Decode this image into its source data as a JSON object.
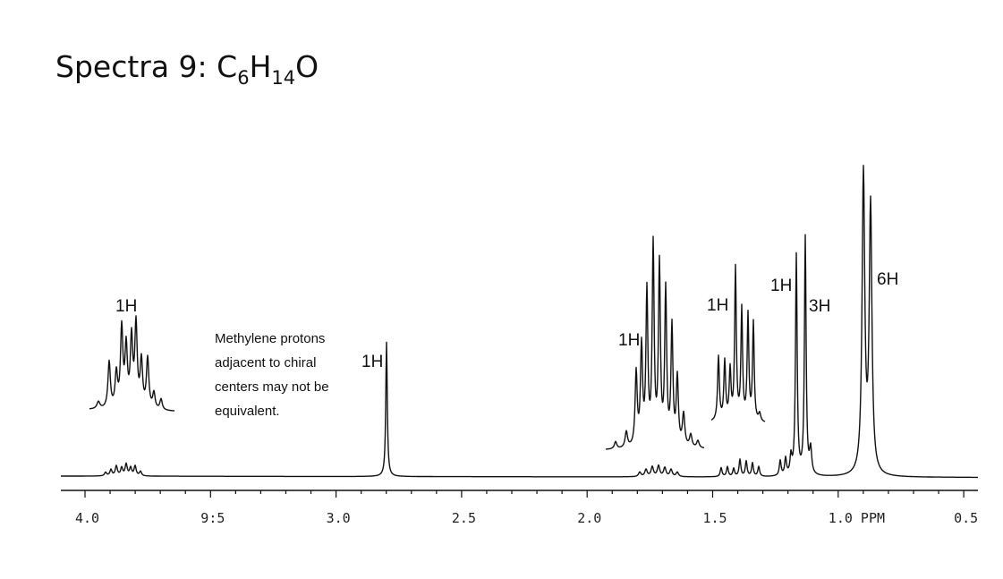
{
  "header": {
    "title": {
      "prefix": "Spectra 9: C",
      "c_count": "6",
      "h": "H",
      "h_count": "14",
      "suffix": "O"
    }
  },
  "spectrum": {
    "peak_labels": [
      "1H",
      "1H",
      "1H",
      "1H",
      "1H",
      "3H",
      "6H"
    ],
    "note": [
      "Methylene protons",
      "adjacent to chiral",
      "centers may not be",
      "equivalent."
    ],
    "axis": {
      "ticks": [
        "4.0",
        "9:5",
        "3.0",
        "2.5",
        "2.0",
        "1.5",
        "1.0 PPM",
        "0.5"
      ]
    }
  }
}
